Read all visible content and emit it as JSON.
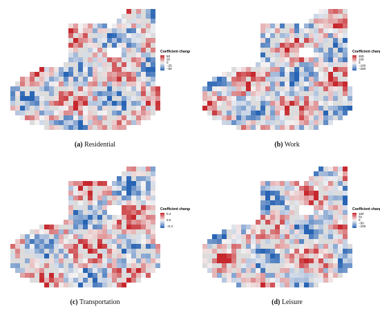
{
  "panels": [
    {
      "label": "(a)",
      "caption": "Residential",
      "legend_title": "Coefficient change",
      "legend_ticks": [
        "50",
        "25",
        "0",
        "−25",
        "−50"
      ]
    },
    {
      "label": "(b)",
      "caption": "Work",
      "legend_title": "Coefficient change",
      "legend_ticks": [
        "200",
        "100",
        "0",
        "−100",
        "−200"
      ]
    },
    {
      "label": "(c)",
      "caption": "Transportation",
      "legend_title": "Coefficient change",
      "legend_ticks": [
        "0.4",
        "0.0",
        "−0.4"
      ]
    },
    {
      "label": "(d)",
      "caption": "Leisure",
      "legend_title": "Coefficient change",
      "legend_ticks": [
        "100",
        "50",
        "0",
        "−50",
        "−100"
      ]
    }
  ]
}
